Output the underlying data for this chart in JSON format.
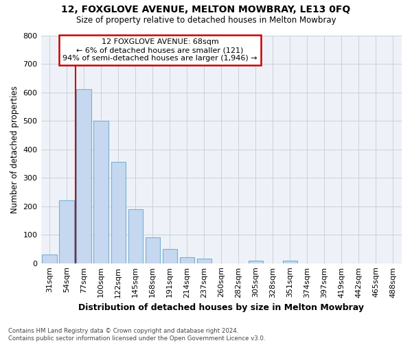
{
  "title1": "12, FOXGLOVE AVENUE, MELTON MOWBRAY, LE13 0FQ",
  "title2": "Size of property relative to detached houses in Melton Mowbray",
  "xlabel": "Distribution of detached houses by size in Melton Mowbray",
  "ylabel": "Number of detached properties",
  "categories": [
    "31sqm",
    "54sqm",
    "77sqm",
    "100sqm",
    "122sqm",
    "145sqm",
    "168sqm",
    "191sqm",
    "214sqm",
    "237sqm",
    "260sqm",
    "282sqm",
    "305sqm",
    "328sqm",
    "351sqm",
    "374sqm",
    "397sqm",
    "419sqm",
    "442sqm",
    "465sqm",
    "488sqm"
  ],
  "values": [
    30,
    220,
    610,
    500,
    355,
    190,
    90,
    50,
    22,
    17,
    0,
    0,
    10,
    0,
    10,
    0,
    0,
    0,
    0,
    0,
    0
  ],
  "bar_color": "#c5d8f0",
  "bar_edge_color": "#7aafd4",
  "bar_width": 0.85,
  "vline_color": "#cc0000",
  "vline_pos": 1.5,
  "annotation_text": "12 FOXGLOVE AVENUE: 68sqm\n← 6% of detached houses are smaller (121)\n94% of semi-detached houses are larger (1,946) →",
  "annotation_box_color": "#ffffff",
  "annotation_box_edge": "#cc0000",
  "ylim": [
    0,
    800
  ],
  "yticks": [
    0,
    100,
    200,
    300,
    400,
    500,
    600,
    700,
    800
  ],
  "grid_color": "#c8d0dc",
  "bg_color": "#eef2f8",
  "fig_bg_color": "#ffffff",
  "footnote": "Contains HM Land Registry data © Crown copyright and database right 2024.\nContains public sector information licensed under the Open Government Licence v3.0."
}
